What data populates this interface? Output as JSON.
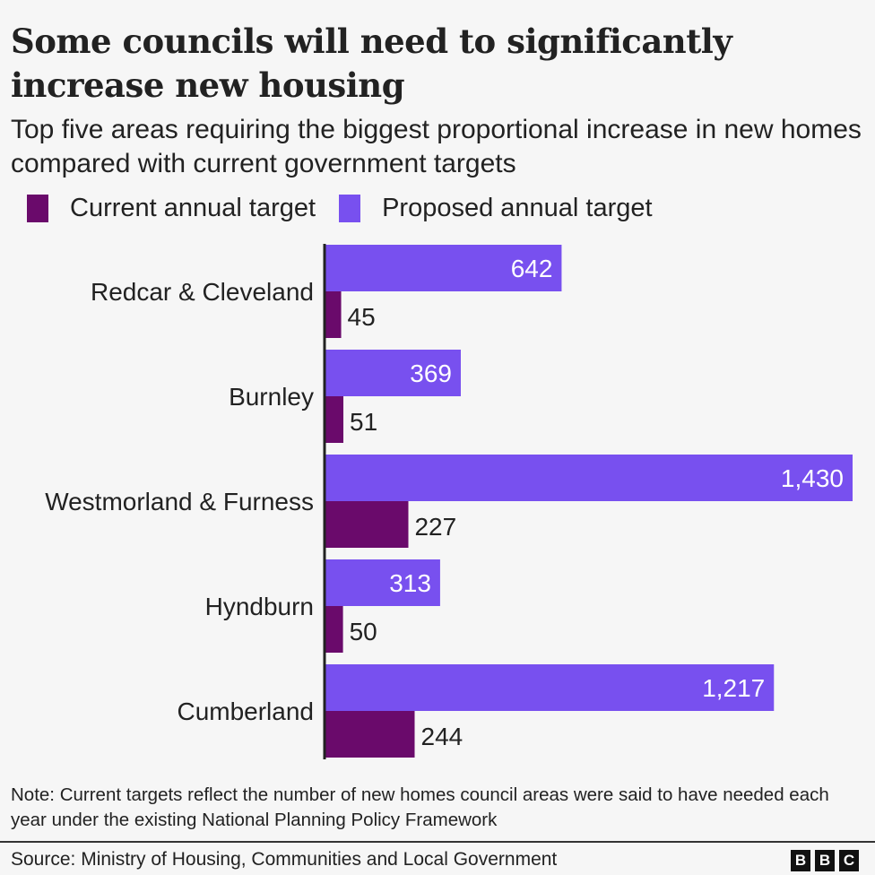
{
  "header": {
    "title": "Some councils will need to significantly increase new housing",
    "subtitle": "Top five areas requiring the biggest proportional increase in new homes compared with current government targets"
  },
  "legend": [
    {
      "label": "Current annual target",
      "color": "#6a0a6b"
    },
    {
      "label": "Proposed annual target",
      "color": "#7850ef"
    }
  ],
  "chart_data": {
    "type": "bar",
    "orientation": "horizontal",
    "title": "Some councils will need to significantly increase new housing",
    "subtitle": "Top five areas requiring the biggest proportional increase in new homes compared with current government targets",
    "xlabel": "",
    "ylabel": "",
    "grid": false,
    "legend_position": "top-left",
    "xlim": [
      0,
      1430
    ],
    "categories": [
      "Redcar & Cleveland",
      "Burnley",
      "Westmorland & Furness",
      "Hyndburn",
      "Cumberland"
    ],
    "series": [
      {
        "name": "Proposed annual target",
        "color": "#7850ef",
        "values": [
          642,
          369,
          1430,
          313,
          1217
        ],
        "labels": [
          "642",
          "369",
          "1,430",
          "313",
          "1,217"
        ]
      },
      {
        "name": "Current annual target",
        "color": "#6a0a6b",
        "values": [
          45,
          51,
          227,
          50,
          244
        ],
        "labels": [
          "45",
          "51",
          "227",
          "50",
          "244"
        ]
      }
    ]
  },
  "footer": {
    "note": "Note: Current targets reflect the number of new homes council areas were said to have needed each year under the existing National Planning Policy Framework",
    "source": "Source: Ministry of Housing, Communities and Local Government",
    "logo_letters": [
      "B",
      "B",
      "C"
    ]
  }
}
